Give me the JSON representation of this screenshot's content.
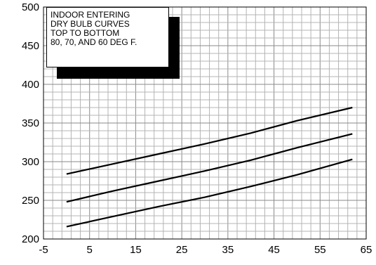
{
  "chart_data": {
    "type": "line",
    "xlim": [
      -5,
      65
    ],
    "ylim": [
      200,
      500
    ],
    "x_ticks": [
      "-5",
      "5",
      "15",
      "25",
      "35",
      "45",
      "55",
      "65"
    ],
    "y_ticks": [
      "200",
      "250",
      "300",
      "350",
      "400",
      "450",
      "500"
    ],
    "grid": true,
    "annotation": [
      "INDOOR ENTERING",
      "DRY BULB CURVES",
      "TOP TO BOTTOM",
      "80, 70, AND 60 DEG F."
    ],
    "series": [
      {
        "x": [
          0,
          10,
          20,
          30,
          40,
          50,
          62
        ],
        "y": [
          284,
          297,
          310,
          323,
          337,
          353,
          370
        ]
      },
      {
        "x": [
          0,
          10,
          20,
          30,
          40,
          50,
          62
        ],
        "y": [
          248,
          262,
          275,
          288,
          302,
          318,
          336
        ]
      },
      {
        "x": [
          0,
          10,
          20,
          30,
          40,
          50,
          62
        ],
        "y": [
          216,
          229,
          242,
          254,
          268,
          283,
          303
        ]
      }
    ]
  }
}
